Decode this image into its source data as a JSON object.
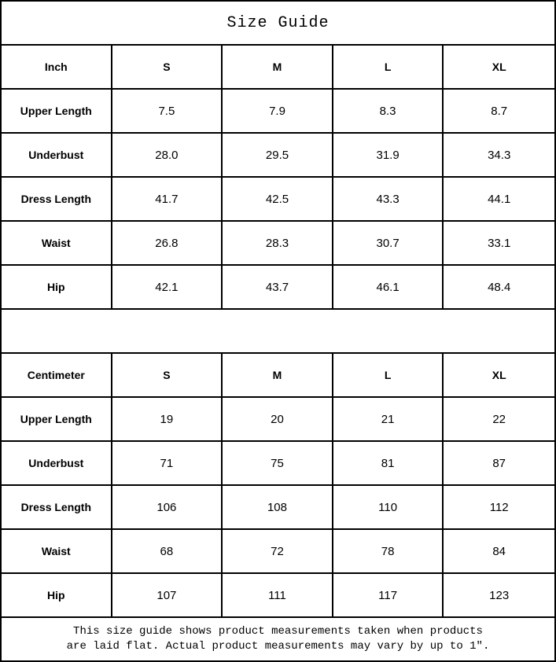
{
  "chart_data": {
    "type": "table",
    "title": "Size Guide",
    "tables": [
      {
        "unit": "Inch",
        "sizes": [
          "S",
          "M",
          "L",
          "XL"
        ],
        "rows": [
          {
            "label": "Upper Length",
            "values": [
              "7.5",
              "7.9",
              "8.3",
              "8.7"
            ]
          },
          {
            "label": "Underbust",
            "values": [
              "28.0",
              "29.5",
              "31.9",
              "34.3"
            ]
          },
          {
            "label": "Dress Length",
            "values": [
              "41.7",
              "42.5",
              "43.3",
              "44.1"
            ]
          },
          {
            "label": "Waist",
            "values": [
              "26.8",
              "28.3",
              "30.7",
              "33.1"
            ]
          },
          {
            "label": "Hip",
            "values": [
              "42.1",
              "43.7",
              "46.1",
              "48.4"
            ]
          }
        ]
      },
      {
        "unit": "Centimeter",
        "sizes": [
          "S",
          "M",
          "L",
          "XL"
        ],
        "rows": [
          {
            "label": "Upper Length",
            "values": [
              "19",
              "20",
              "21",
              "22"
            ]
          },
          {
            "label": "Underbust",
            "values": [
              "71",
              "75",
              "81",
              "87"
            ]
          },
          {
            "label": "Dress Length",
            "values": [
              "106",
              "108",
              "110",
              "112"
            ]
          },
          {
            "label": "Waist",
            "values": [
              "68",
              "72",
              "78",
              "84"
            ]
          },
          {
            "label": "Hip",
            "values": [
              "107",
              "111",
              "117",
              "123"
            ]
          }
        ]
      }
    ],
    "footnote": [
      "This size guide shows product measurements taken when products",
      "are laid flat. Actual product measurements may vary by up to 1″."
    ],
    "colors": {
      "border": "#000000",
      "text": "#000000",
      "background": "#ffffff"
    }
  }
}
